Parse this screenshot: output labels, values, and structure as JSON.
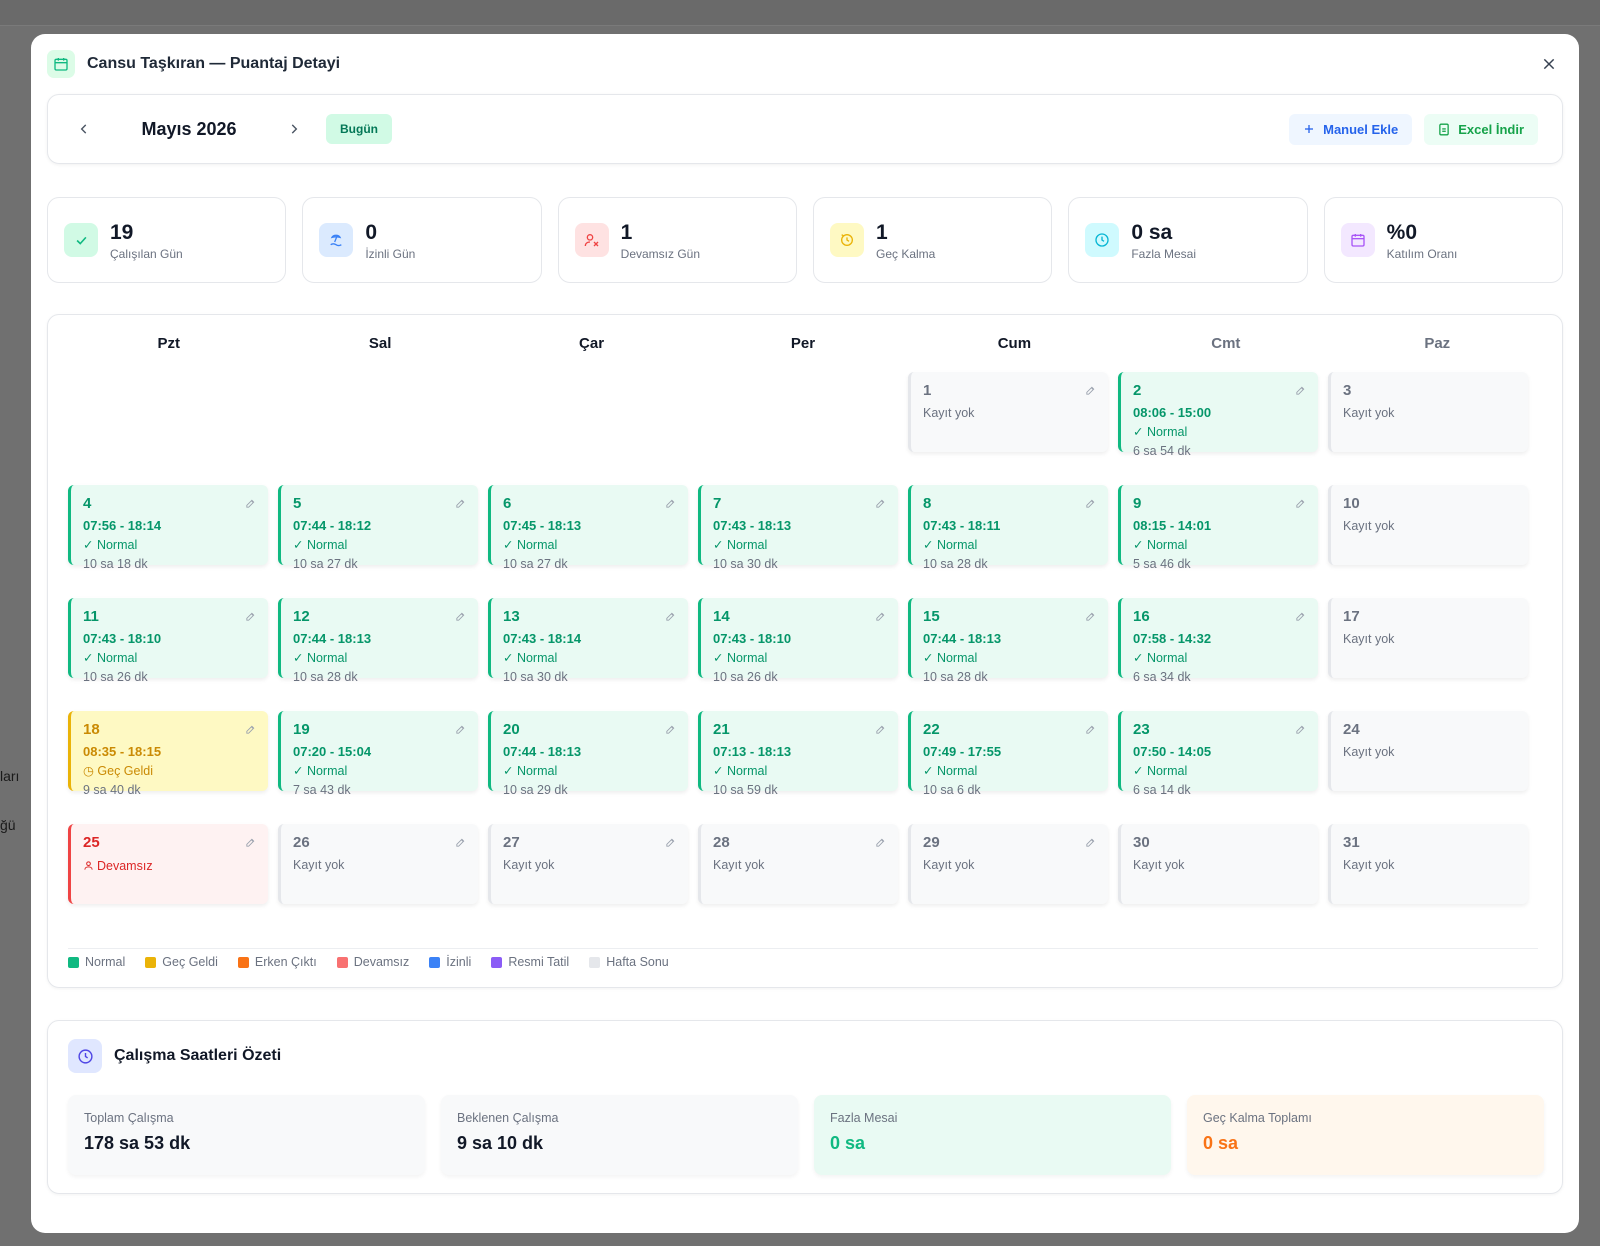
{
  "background": {
    "fragment_1": "ları",
    "fragment_2": "ğü"
  },
  "modal": {
    "title": "Cansu Taşkıran — Puantaj Detayi"
  },
  "toolbar": {
    "month": "Mayıs 2026",
    "today_label": "Bugün",
    "manual_add_label": "Manuel Ekle",
    "excel_label": "Excel İndir"
  },
  "stats": [
    {
      "value": "19",
      "label": "Çalışılan Gün",
      "icon": "check-icon",
      "color": "#10b981",
      "bg": "#d1fae5"
    },
    {
      "value": "0",
      "label": "İzinli Gün",
      "icon": "beach-icon",
      "color": "#3b82f6",
      "bg": "#dbeafe"
    },
    {
      "value": "1",
      "label": "Devamsız Gün",
      "icon": "user-x-icon",
      "color": "#ef4444",
      "bg": "#fee2e2"
    },
    {
      "value": "1",
      "label": "Geç Kalma",
      "icon": "clock-alert-icon",
      "color": "#eab308",
      "bg": "#fef9c3"
    },
    {
      "value": "0 sa",
      "label": "Fazla Mesai",
      "icon": "clock-icon",
      "color": "#06b6d4",
      "bg": "#cffafe"
    },
    {
      "value": "%0",
      "label": "Katılım Oranı",
      "icon": "calendar-icon",
      "color": "#a855f7",
      "bg": "#f3e8ff"
    }
  ],
  "calendar": {
    "weekdays": [
      "Pzt",
      "Sal",
      "Çar",
      "Per",
      "Cum",
      "Cmt",
      "Paz"
    ],
    "leading_blanks": 4,
    "days": [
      {
        "n": "1",
        "type": "none",
        "empty": "Kayıt yok",
        "edit": true
      },
      {
        "n": "2",
        "type": "normal",
        "time": "08:06 - 15:00",
        "status": "Normal",
        "dur": "6 sa 54 dk",
        "edit": true
      },
      {
        "n": "3",
        "type": "none",
        "empty": "Kayıt yok",
        "edit": false
      },
      {
        "n": "4",
        "type": "normal",
        "time": "07:56 - 18:14",
        "status": "Normal",
        "dur": "10 sa 18 dk",
        "edit": true
      },
      {
        "n": "5",
        "type": "normal",
        "time": "07:44 - 18:12",
        "status": "Normal",
        "dur": "10 sa 27 dk",
        "edit": true
      },
      {
        "n": "6",
        "type": "normal",
        "time": "07:45 - 18:13",
        "status": "Normal",
        "dur": "10 sa 27 dk",
        "edit": true
      },
      {
        "n": "7",
        "type": "normal",
        "time": "07:43 - 18:13",
        "status": "Normal",
        "dur": "10 sa 30 dk",
        "edit": true
      },
      {
        "n": "8",
        "type": "normal",
        "time": "07:43 - 18:11",
        "status": "Normal",
        "dur": "10 sa 28 dk",
        "edit": true
      },
      {
        "n": "9",
        "type": "normal",
        "time": "08:15 - 14:01",
        "status": "Normal",
        "dur": "5 sa 46 dk",
        "edit": true
      },
      {
        "n": "10",
        "type": "none",
        "empty": "Kayıt yok",
        "edit": false
      },
      {
        "n": "11",
        "type": "normal",
        "time": "07:43 - 18:10",
        "status": "Normal",
        "dur": "10 sa 26 dk",
        "edit": true
      },
      {
        "n": "12",
        "type": "normal",
        "time": "07:44 - 18:13",
        "status": "Normal",
        "dur": "10 sa 28 dk",
        "edit": true
      },
      {
        "n": "13",
        "type": "normal",
        "time": "07:43 - 18:14",
        "status": "Normal",
        "dur": "10 sa 30 dk",
        "edit": true
      },
      {
        "n": "14",
        "type": "normal",
        "time": "07:43 - 18:10",
        "status": "Normal",
        "dur": "10 sa 26 dk",
        "edit": true
      },
      {
        "n": "15",
        "type": "normal",
        "time": "07:44 - 18:13",
        "status": "Normal",
        "dur": "10 sa 28 dk",
        "edit": true
      },
      {
        "n": "16",
        "type": "normal",
        "time": "07:58 - 14:32",
        "status": "Normal",
        "dur": "6 sa 34 dk",
        "edit": true
      },
      {
        "n": "17",
        "type": "none",
        "empty": "Kayıt yok",
        "edit": false
      },
      {
        "n": "18",
        "type": "late",
        "time": "08:35 - 18:15",
        "status": "Geç Geldi",
        "dur": "9 sa 40 dk",
        "edit": true
      },
      {
        "n": "19",
        "type": "normal",
        "time": "07:20 - 15:04",
        "status": "Normal",
        "dur": "7 sa 43 dk",
        "edit": true
      },
      {
        "n": "20",
        "type": "normal",
        "time": "07:44 - 18:13",
        "status": "Normal",
        "dur": "10 sa 29 dk",
        "edit": true
      },
      {
        "n": "21",
        "type": "normal",
        "time": "07:13 - 18:13",
        "status": "Normal",
        "dur": "10 sa 59 dk",
        "edit": true
      },
      {
        "n": "22",
        "type": "normal",
        "time": "07:49 - 17:55",
        "status": "Normal",
        "dur": "10 sa 6 dk",
        "edit": true
      },
      {
        "n": "23",
        "type": "normal",
        "time": "07:50 - 14:05",
        "status": "Normal",
        "dur": "6 sa 14 dk",
        "edit": true
      },
      {
        "n": "24",
        "type": "none",
        "empty": "Kayıt yok",
        "edit": false
      },
      {
        "n": "25",
        "type": "absent",
        "status": "Devamsız",
        "edit": true
      },
      {
        "n": "26",
        "type": "none",
        "empty": "Kayıt yok",
        "edit": true
      },
      {
        "n": "27",
        "type": "none",
        "empty": "Kayıt yok",
        "edit": true
      },
      {
        "n": "28",
        "type": "none",
        "empty": "Kayıt yok",
        "edit": true
      },
      {
        "n": "29",
        "type": "none",
        "empty": "Kayıt yok",
        "edit": true
      },
      {
        "n": "30",
        "type": "none",
        "empty": "Kayıt yok",
        "edit": false
      },
      {
        "n": "31",
        "type": "none",
        "empty": "Kayıt yok",
        "edit": false
      }
    ]
  },
  "legend": [
    {
      "label": "Normal",
      "color": "#10b981"
    },
    {
      "label": "Geç Geldi",
      "color": "#eab308"
    },
    {
      "label": "Erken Çıktı",
      "color": "#f97316"
    },
    {
      "label": "Devamsız",
      "color": "#f87171"
    },
    {
      "label": "İzinli",
      "color": "#3b82f6"
    },
    {
      "label": "Resmi Tatil",
      "color": "#8b5cf6"
    },
    {
      "label": "Hafta Sonu",
      "color": "#e5e7eb"
    }
  ],
  "summary": {
    "title": "Çalışma Saatleri Özeti",
    "cards": [
      {
        "label": "Toplam Çalışma",
        "value": "178 sa 53 dk",
        "bg": "#f8f9fa",
        "color": "#111827"
      },
      {
        "label": "Beklenen Çalışma",
        "value": "9 sa 10 dk",
        "bg": "#f8f9fa",
        "color": "#111827"
      },
      {
        "label": "Fazla Mesai",
        "value": "0 sa",
        "bg": "#e9faf3",
        "color": "#10b981"
      },
      {
        "label": "Geç Kalma Toplamı",
        "value": "0 sa",
        "bg": "#fff7ed",
        "color": "#f97316"
      }
    ]
  }
}
